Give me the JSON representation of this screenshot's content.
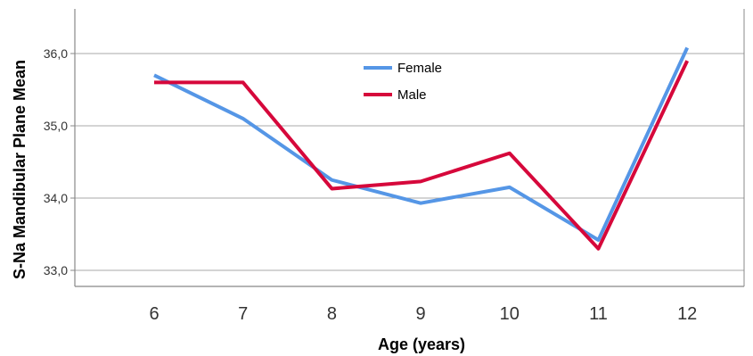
{
  "chart_data": {
    "type": "line",
    "title": "",
    "xlabel": "Age (years)",
    "ylabel": "S-Na Mandibular Plane Mean",
    "categories": [
      "6",
      "7",
      "8",
      "9",
      "10",
      "11",
      "12"
    ],
    "yticks": [
      "33,0",
      "34,0",
      "35,0",
      "36,0"
    ],
    "ytick_values": [
      33,
      34,
      35,
      36
    ],
    "ylim": [
      32.8,
      36.6
    ],
    "grid": "horizontal",
    "legend_position": "top-center",
    "series": [
      {
        "name": "Female",
        "color": "#5596e6",
        "values": [
          35.7,
          35.1,
          34.25,
          33.93,
          34.15,
          33.42,
          36.08
        ]
      },
      {
        "name": "Male",
        "color": "#d6083b",
        "values": [
          35.6,
          35.6,
          34.13,
          34.23,
          34.62,
          33.3,
          35.9
        ]
      }
    ]
  }
}
